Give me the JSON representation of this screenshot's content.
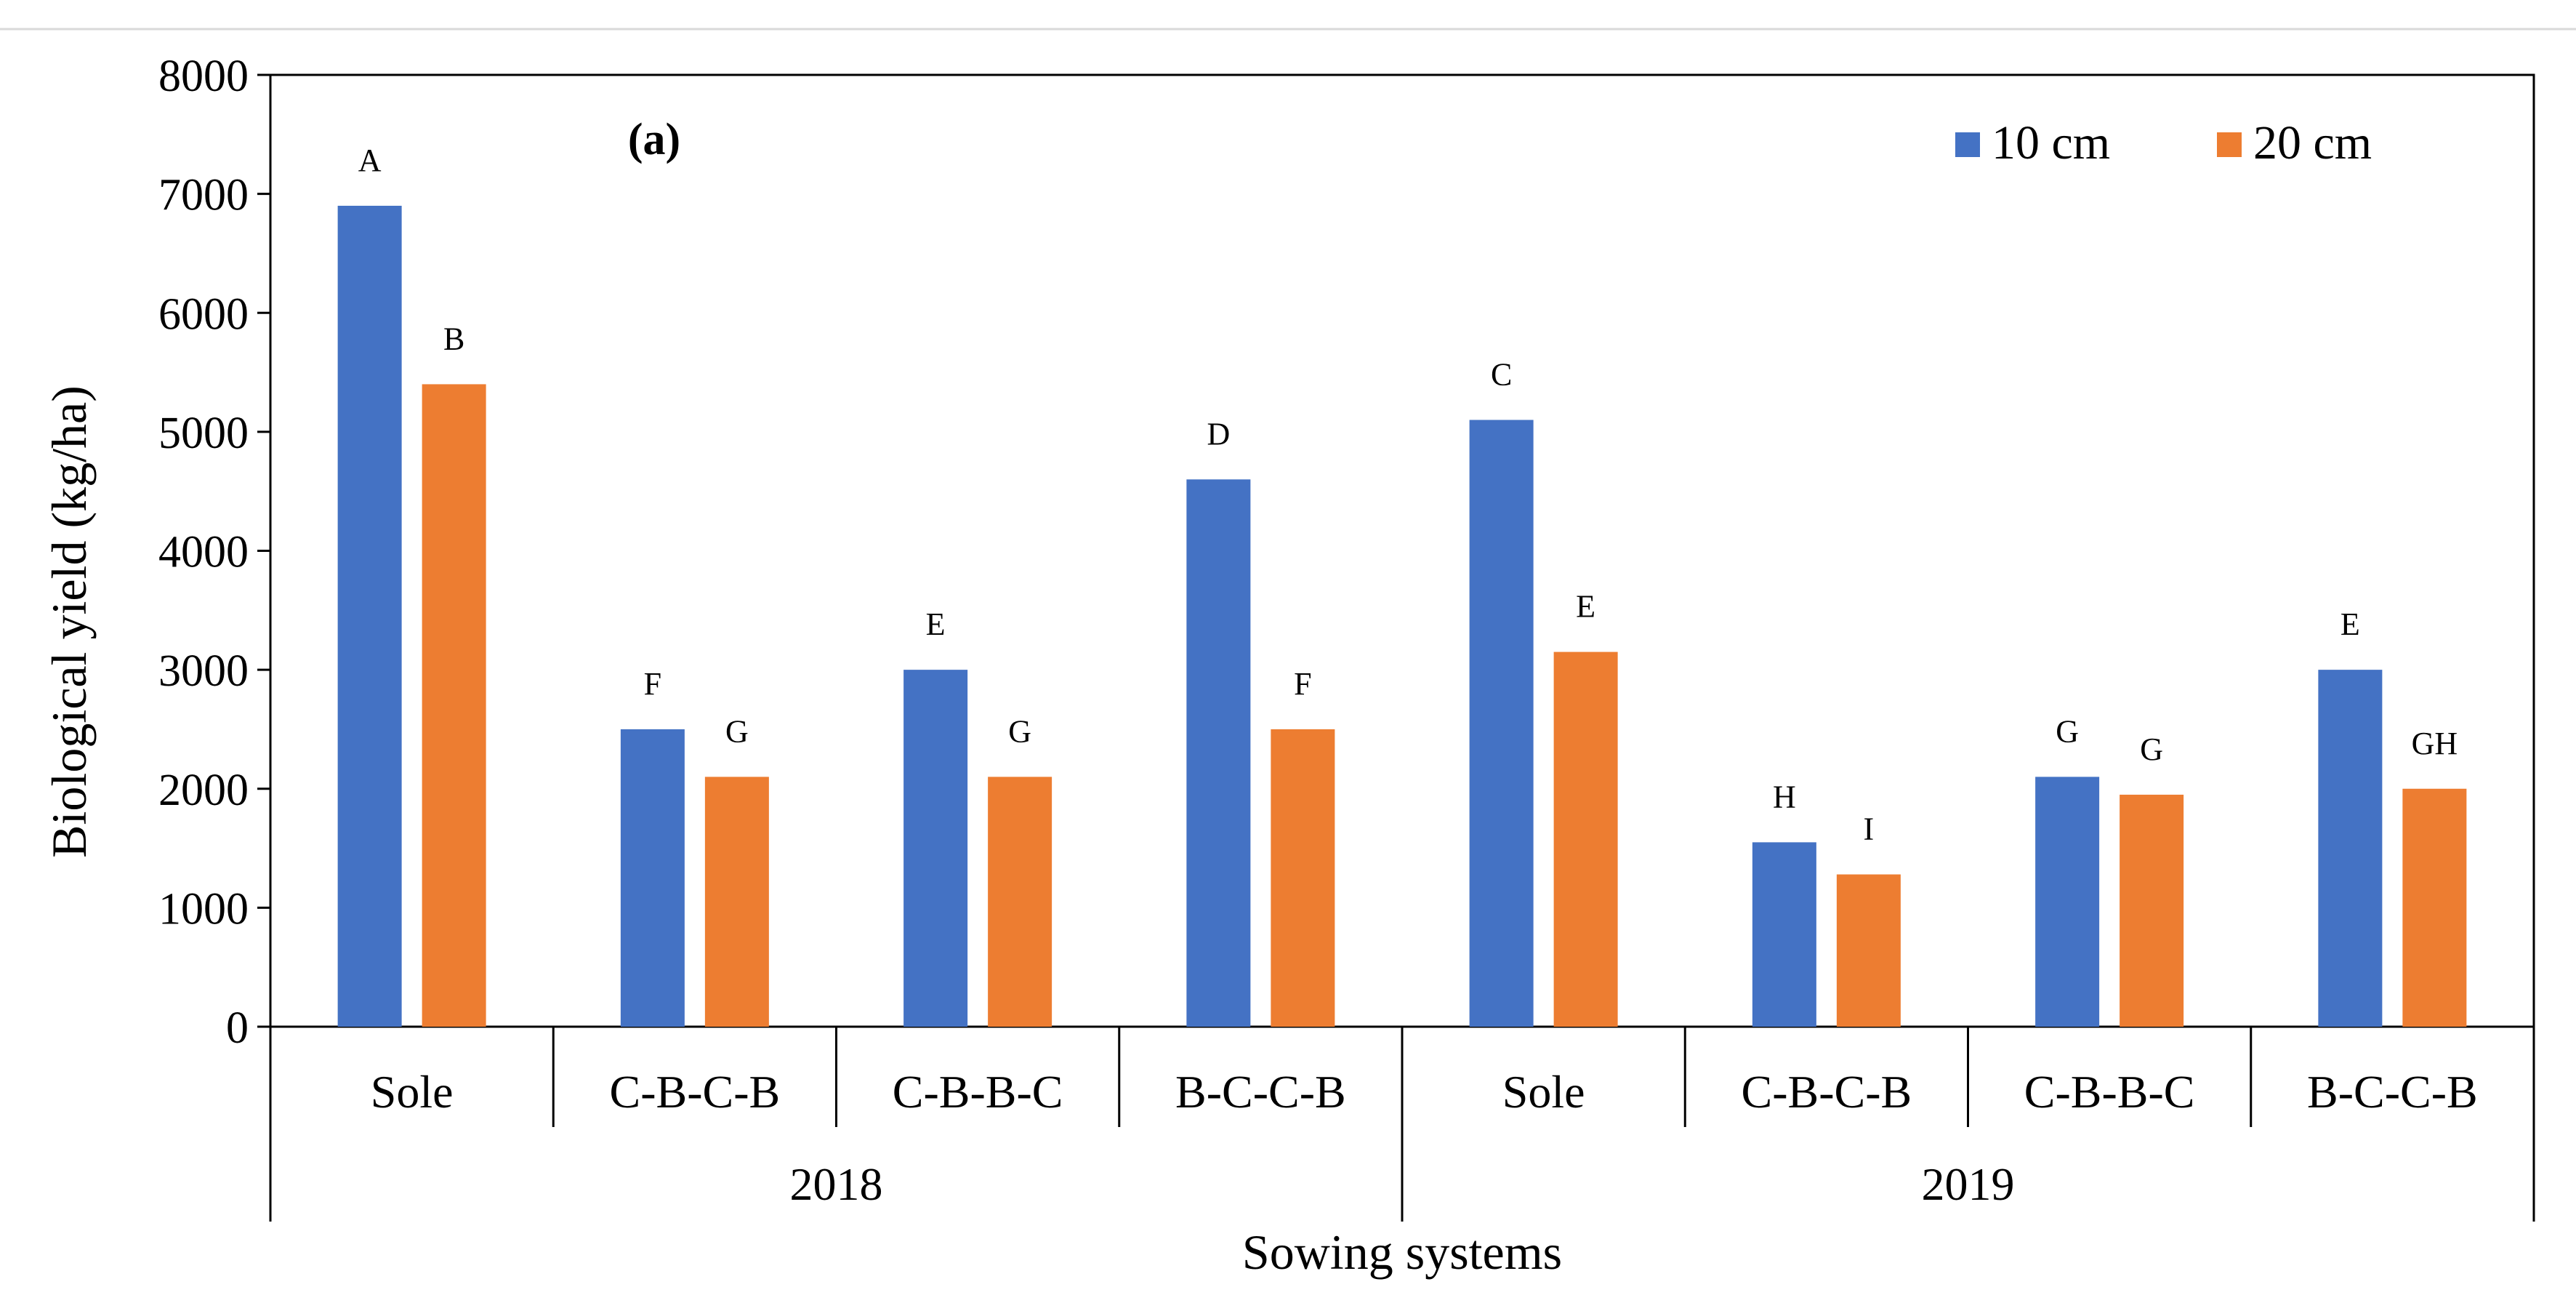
{
  "chart_data": {
    "type": "bar",
    "panel_label": "(a)",
    "ylabel": "Biological yield  (kg/ha)",
    "xlabel": "Sowing systems",
    "ylim": [
      0,
      8000
    ],
    "yticks": [
      0,
      1000,
      2000,
      3000,
      4000,
      5000,
      6000,
      7000,
      8000
    ],
    "groups": [
      {
        "label": "2018",
        "categories": [
          "Sole",
          "C-B-C-B",
          "C-B-B-C",
          "B-C-C-B"
        ]
      },
      {
        "label": "2019",
        "categories": [
          "Sole",
          "C-B-C-B",
          "C-B-B-C",
          "B-C-C-B"
        ]
      }
    ],
    "series": [
      {
        "name": "10 cm",
        "color": "#4472C4",
        "values": [
          6900,
          2500,
          3000,
          4600,
          5100,
          1550,
          2100,
          3000
        ],
        "letters": [
          "A",
          "F",
          "E",
          "D",
          "C",
          "H",
          "G",
          "E"
        ]
      },
      {
        "name": "20 cm",
        "color": "#ED7D31",
        "values": [
          5400,
          2100,
          2100,
          2500,
          3150,
          1280,
          1950,
          2000
        ],
        "letters": [
          "B",
          "G",
          "G",
          "F",
          "E",
          "I",
          "G",
          "GH"
        ]
      }
    ],
    "legend_position": "top-right",
    "grid": false
  }
}
